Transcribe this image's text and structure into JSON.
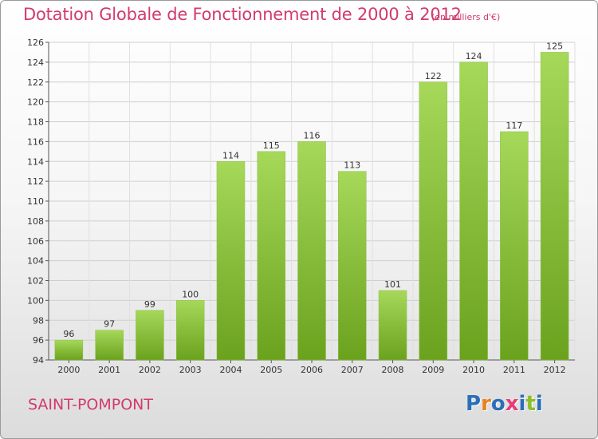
{
  "header": {
    "title": "Dotation Globale de Fonctionnement de 2000 à 2012",
    "unit": "(en milliers d'€)"
  },
  "footer": {
    "commune": "SAINT-POMPONT",
    "logo_letters": [
      "P",
      "r",
      "o",
      "x",
      "i",
      "t",
      "i"
    ]
  },
  "colors": {
    "title": "#d23a6e",
    "bar_light": "#a6d85a",
    "bar_dark": "#6aa21e",
    "logo": [
      "#2a6fb8",
      "#e8821e",
      "#2a6fb8",
      "#e83a7a",
      "#2a6fb8",
      "#8bbf2a",
      "#2a6fb8"
    ]
  },
  "chart_data": {
    "type": "bar",
    "categories": [
      "2000",
      "2001",
      "2002",
      "2003",
      "2004",
      "2005",
      "2006",
      "2007",
      "2008",
      "2009",
      "2010",
      "2011",
      "2012"
    ],
    "values": [
      96,
      97,
      99,
      100,
      114,
      115,
      116,
      113,
      101,
      122,
      124,
      117,
      125
    ],
    "ylim": [
      94,
      126
    ],
    "yticks": [
      94,
      96,
      98,
      100,
      102,
      104,
      106,
      108,
      110,
      112,
      114,
      116,
      118,
      120,
      122,
      124,
      126
    ],
    "grid": true,
    "legend": "none"
  }
}
